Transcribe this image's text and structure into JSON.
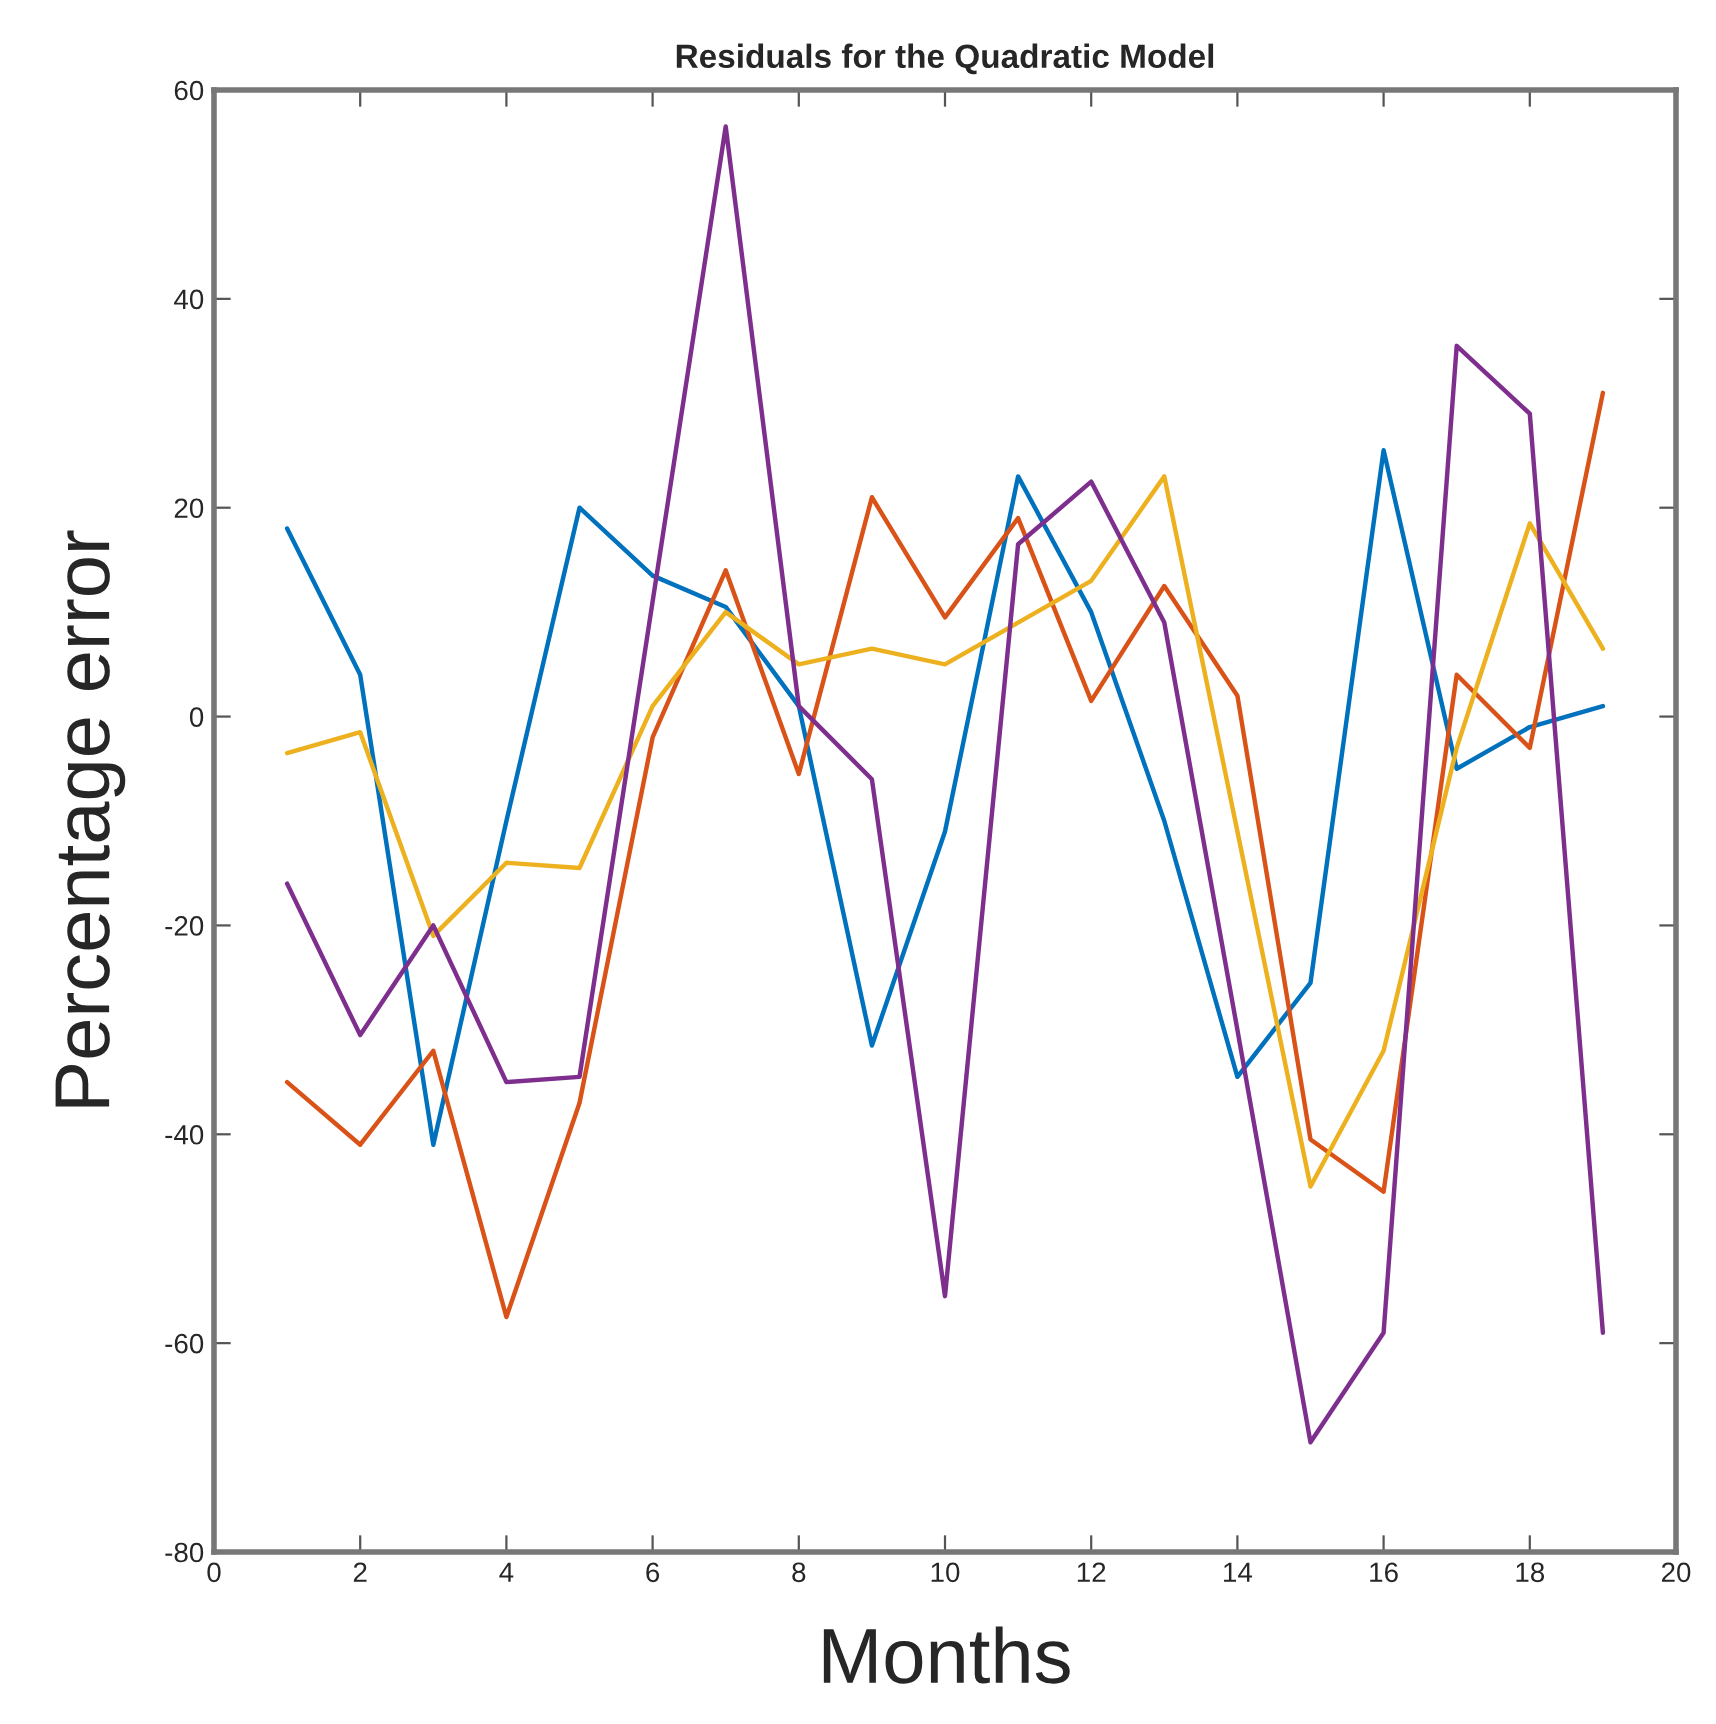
{
  "chart_data": {
    "type": "line",
    "title": "Residuals for the Quadratic Model",
    "xlabel": "Months",
    "ylabel": "Percentage error",
    "x": [
      1,
      2,
      3,
      4,
      5,
      6,
      7,
      8,
      9,
      10,
      11,
      12,
      13,
      14,
      15,
      16,
      17,
      18,
      19
    ],
    "series": [
      {
        "color": "#0072bd",
        "values": [
          18,
          4,
          -41,
          -10,
          20,
          13.5,
          10.5,
          1,
          -31.5,
          -11,
          23,
          10,
          -10,
          -34.5,
          -25.5,
          25.5,
          -5,
          -1,
          1
        ]
      },
      {
        "color": "#d95319",
        "values": [
          -35,
          -41,
          -32,
          -57.5,
          -37,
          -2,
          14,
          -5.5,
          21,
          9.5,
          19,
          1.5,
          12.5,
          2,
          -40.5,
          -45.5,
          4,
          -3,
          31
        ]
      },
      {
        "color": "#edb120",
        "values": [
          -3.5,
          -1.5,
          -21,
          -14,
          -14.5,
          1,
          10,
          5,
          6.5,
          5,
          9,
          13,
          23,
          -11,
          -45,
          -32,
          -3,
          18.5,
          6.5
        ]
      },
      {
        "color": "#7e2f8e",
        "values": [
          -16,
          -30.5,
          -20,
          -35,
          -34.5,
          11,
          56.5,
          1,
          -6,
          -55.5,
          16.5,
          22.5,
          9,
          -30,
          -69.5,
          -59,
          35.5,
          29,
          -59
        ]
      }
    ],
    "xlim": [
      0,
      20
    ],
    "xticks": [
      0,
      2,
      4,
      6,
      8,
      10,
      12,
      14,
      16,
      18,
      20
    ],
    "ylim": [
      -80,
      60
    ],
    "yticks": [
      -80,
      -60,
      -40,
      -20,
      0,
      20,
      40,
      60
    ],
    "grid": false,
    "legend": false,
    "marker": "none",
    "line_style": "solid"
  }
}
